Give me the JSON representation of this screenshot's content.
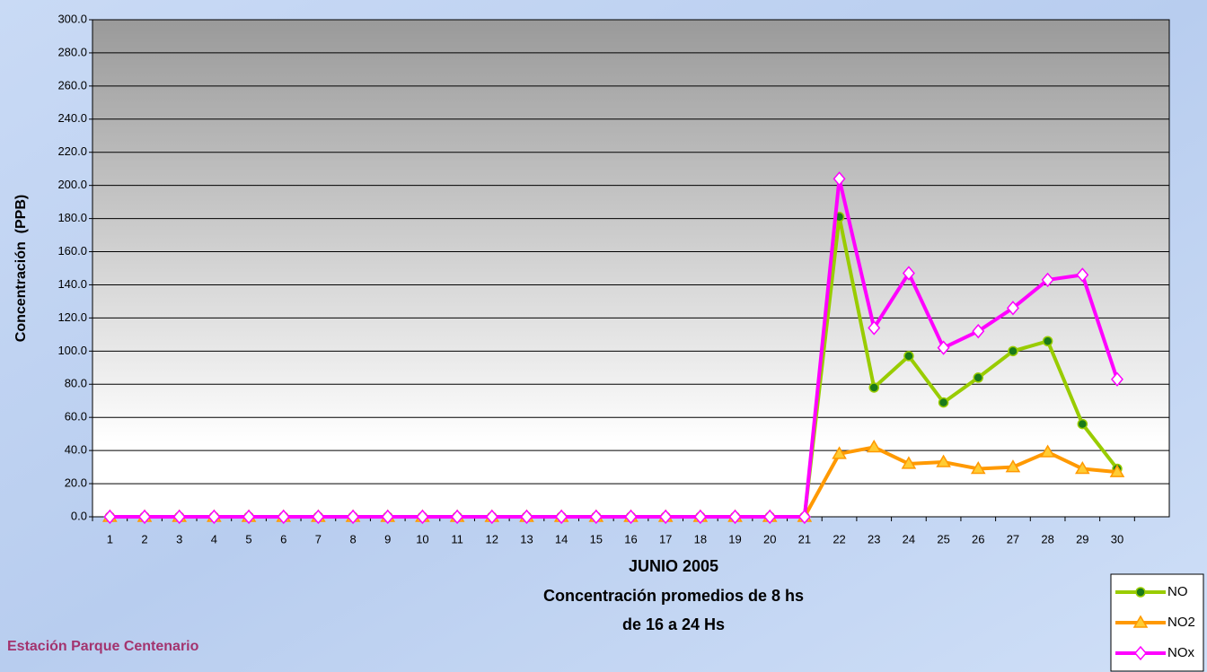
{
  "chart_data": {
    "type": "line",
    "ylabel": "Concentración  (PPB)",
    "xlabel": [
      "JUNIO 2005",
      "Concentración promedios de 8 hs",
      "de 16 a 24 Hs"
    ],
    "footnote": "Estación Parque Centenario",
    "categories": [
      "1",
      "2",
      "3",
      "4",
      "5",
      "6",
      "7",
      "8",
      "9",
      "10",
      "11",
      "12",
      "13",
      "14",
      "15",
      "16",
      "17",
      "18",
      "19",
      "20",
      "21",
      "22",
      "23",
      "24",
      "25",
      "26",
      "27",
      "28",
      "29",
      "30",
      null
    ],
    "series": [
      {
        "name": "NO",
        "color": "#99cc00",
        "marker": "circle",
        "values": [
          0,
          0,
          0,
          0,
          0,
          0,
          0,
          0,
          0,
          0,
          0,
          0,
          0,
          0,
          0,
          0,
          0,
          0,
          0,
          0,
          0,
          181,
          78,
          97,
          69,
          84,
          100,
          106,
          56,
          29,
          null
        ]
      },
      {
        "name": "NO2",
        "color": "#ff9900",
        "marker": "triangle",
        "values": [
          0,
          0,
          0,
          0,
          0,
          0,
          0,
          0,
          0,
          0,
          0,
          0,
          0,
          0,
          0,
          0,
          0,
          0,
          0,
          0,
          0,
          38,
          42,
          32,
          33,
          29,
          30,
          39,
          29,
          27,
          null
        ]
      },
      {
        "name": "NOx",
        "color": "#ff00ff",
        "marker": "diamond",
        "values": [
          0,
          0,
          0,
          0,
          0,
          0,
          0,
          0,
          0,
          0,
          0,
          0,
          0,
          0,
          0,
          0,
          0,
          0,
          0,
          0,
          0,
          204,
          114,
          147,
          102,
          112,
          126,
          143,
          146,
          83,
          null
        ]
      }
    ],
    "ylim": [
      0,
      300
    ],
    "yticks": [
      {
        "value": 0,
        "label": "0.0"
      },
      {
        "value": 20,
        "label": "20.0"
      },
      {
        "value": 40,
        "label": "40.0"
      },
      {
        "value": 60,
        "label": "60.0"
      },
      {
        "value": 80,
        "label": "80.0"
      },
      {
        "value": 100,
        "label": "100.0"
      },
      {
        "value": 120,
        "label": "120.0"
      },
      {
        "value": 140,
        "label": "140.0"
      },
      {
        "value": 160,
        "label": "160.0"
      },
      {
        "value": 180,
        "label": "180.0"
      },
      {
        "value": 200,
        "label": "200.0"
      },
      {
        "value": 220,
        "label": "220.0"
      },
      {
        "value": 240,
        "label": "240.0"
      },
      {
        "value": 260,
        "label": "260.0"
      },
      {
        "value": 280,
        "label": "280.0"
      },
      {
        "value": 300,
        "label": "300.0"
      }
    ],
    "grid": true
  }
}
